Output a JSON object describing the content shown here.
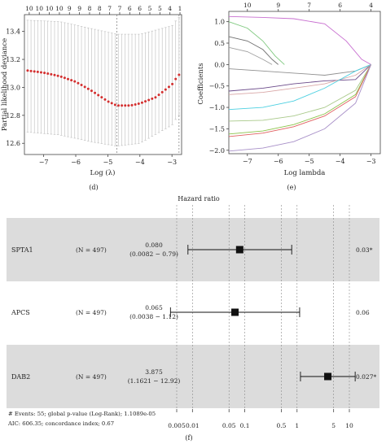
{
  "chart_data": [
    {
      "panel": "(d)",
      "type": "scatter",
      "xlabel": "Log (λ)",
      "ylabel": "Partial likelihood deviance",
      "xlim": [
        -7.6,
        -2.7
      ],
      "ylim": [
        12.52,
        13.52
      ],
      "x_ticks": [
        -7,
        -6,
        -5,
        -4,
        -3
      ],
      "x_tick_labels": [
        "−7",
        "−6",
        "−5",
        "−4",
        "−3"
      ],
      "y_ticks": [
        12.6,
        12.8,
        13.0,
        13.2,
        13.4
      ],
      "y_tick_labels": [
        "12.6",
        "12.8",
        "13.0",
        "13.2",
        "13.4"
      ],
      "top_tick_labels": [
        "10",
        "10",
        "10",
        "10",
        "9",
        "9",
        "8",
        "8",
        "7",
        "7",
        "6",
        "6",
        "5",
        "5",
        "4",
        "1"
      ],
      "vlines": [
        -4.72,
        -2.78
      ],
      "curve_points": [
        [
          -7.5,
          13.12
        ],
        [
          -7.0,
          13.105
        ],
        [
          -6.5,
          13.08
        ],
        [
          -6.0,
          13.04
        ],
        [
          -5.5,
          12.975
        ],
        [
          -5.0,
          12.9
        ],
        [
          -4.72,
          12.87
        ],
        [
          -4.3,
          12.87
        ],
        [
          -4.0,
          12.885
        ],
        [
          -3.5,
          12.93
        ],
        [
          -3.0,
          13.02
        ],
        [
          -2.8,
          13.09
        ]
      ],
      "error_lower": [
        [
          -7.5,
          12.68
        ],
        [
          -6.5,
          12.66
        ],
        [
          -5.5,
          12.61
        ],
        [
          -4.72,
          12.58
        ],
        [
          -4.0,
          12.6
        ],
        [
          -3.0,
          12.73
        ],
        [
          -2.8,
          12.8
        ]
      ],
      "error_upper": [
        [
          -7.5,
          13.48
        ],
        [
          -6.5,
          13.47
        ],
        [
          -5.5,
          13.42
        ],
        [
          -4.72,
          13.38
        ],
        [
          -4.0,
          13.38
        ],
        [
          -3.0,
          13.44
        ],
        [
          -2.8,
          13.5
        ]
      ]
    },
    {
      "panel": "(e)",
      "type": "line",
      "xlabel": "Log lambda",
      "ylabel": "Coefficients",
      "xlim": [
        -7.6,
        -2.7
      ],
      "ylim": [
        -2.08,
        1.24
      ],
      "x_ticks": [
        -7,
        -6,
        -5,
        -4,
        -3
      ],
      "x_tick_labels": [
        "−7",
        "−6",
        "−5",
        "−4",
        "−3"
      ],
      "y_ticks": [
        -2.0,
        -1.5,
        -1.0,
        -0.5,
        0.0,
        0.5,
        1.0
      ],
      "y_tick_labels": [
        "−2.0",
        "−1.5",
        "−1.0",
        "−0.5",
        "0.0",
        "0.5",
        "1.0"
      ],
      "top_ticks": [
        -7,
        -6,
        -5,
        -4,
        -3
      ],
      "top_tick_labels": [
        "10",
        "9",
        "7",
        "6",
        "4"
      ],
      "series": [
        {
          "color": "#c86fd0",
          "x": [
            -7.6,
            -6.5,
            -5.5,
            -4.5,
            -3.8,
            -3.3,
            -3.0
          ],
          "y": [
            1.12,
            1.1,
            1.07,
            0.95,
            0.55,
            0.12,
            0.0
          ]
        },
        {
          "color": "#7fc97f",
          "x": [
            -7.6,
            -7.0,
            -6.5,
            -6.1,
            -5.8
          ],
          "y": [
            1.0,
            0.85,
            0.55,
            0.2,
            0.0
          ]
        },
        {
          "color": "#707070",
          "x": [
            -7.6,
            -7.0,
            -6.5,
            -6.2,
            -6.0
          ],
          "y": [
            0.65,
            0.55,
            0.35,
            0.12,
            0.0
          ]
        },
        {
          "color": "#a0a0a0",
          "x": [
            -7.6,
            -7.0,
            -6.5,
            -6.2
          ],
          "y": [
            0.4,
            0.3,
            0.12,
            0.0
          ]
        },
        {
          "color": "#909090",
          "x": [
            -7.6,
            -6.5,
            -5.5,
            -4.5,
            -3.5,
            -3.0
          ],
          "y": [
            -0.1,
            -0.15,
            -0.2,
            -0.25,
            -0.15,
            0.0
          ]
        },
        {
          "color": "#6b4a8a",
          "x": [
            -7.6,
            -6.5,
            -5.5,
            -4.5,
            -3.5,
            -3.0
          ],
          "y": [
            -0.62,
            -0.55,
            -0.45,
            -0.38,
            -0.35,
            0.0
          ]
        },
        {
          "color": "#d9a7a7",
          "x": [
            -7.6,
            -6.5,
            -5.5,
            -4.5,
            -3.5,
            -3.0
          ],
          "y": [
            -0.7,
            -0.65,
            -0.55,
            -0.45,
            -0.25,
            0.0
          ]
        },
        {
          "color": "#4dd0e1",
          "x": [
            -7.6,
            -6.5,
            -5.5,
            -4.5,
            -3.5,
            -3.0
          ],
          "y": [
            -1.05,
            -1.0,
            -0.85,
            -0.55,
            -0.15,
            0.0
          ]
        },
        {
          "color": "#a9c98a",
          "x": [
            -7.6,
            -6.5,
            -5.5,
            -4.5,
            -3.5,
            -3.0
          ],
          "y": [
            -1.32,
            -1.3,
            -1.2,
            -1.0,
            -0.6,
            0.0
          ]
        },
        {
          "color": "#8bc34a",
          "x": [
            -7.6,
            -6.5,
            -5.5,
            -4.5,
            -3.5,
            -3.0
          ],
          "y": [
            -1.62,
            -1.55,
            -1.4,
            -1.15,
            -0.7,
            0.0
          ]
        },
        {
          "color": "#e06060",
          "x": [
            -7.6,
            -6.5,
            -5.5,
            -4.5,
            -3.5,
            -3.0
          ],
          "y": [
            -1.68,
            -1.6,
            -1.45,
            -1.2,
            -0.75,
            0.0
          ]
        },
        {
          "color": "#a890c8",
          "x": [
            -7.6,
            -6.5,
            -5.5,
            -4.5,
            -3.5,
            -3.0
          ],
          "y": [
            -2.02,
            -1.95,
            -1.8,
            -1.5,
            -0.9,
            0.0
          ]
        }
      ]
    },
    {
      "panel": "(f)",
      "type": "forest",
      "title": "Hazard ratio",
      "x_scale": "log",
      "x_ticks": [
        0.005,
        0.01,
        0.05,
        0.1,
        0.5,
        1,
        5,
        10
      ],
      "x_tick_labels": [
        "0.005",
        "0.01",
        "0.05",
        "0.1",
        "0.5",
        "1",
        "5",
        "10"
      ],
      "rows": [
        {
          "name": "SPTA1",
          "n": "(N = 497)",
          "hr": 0.08,
          "lo": 0.0082,
          "hi": 0.79,
          "hr_text": "0.080",
          "ci_text": "(0.0082 − 0.79)",
          "p": "0.03*",
          "shaded": true
        },
        {
          "name": "APCS",
          "n": "(N = 497)",
          "hr": 0.065,
          "lo": 0.0038,
          "hi": 1.12,
          "hr_text": "0.065",
          "ci_text": "(0.0038 − 1.12)",
          "p": "0.06",
          "shaded": false
        },
        {
          "name": "DAB2",
          "n": "(N = 497)",
          "hr": 3.875,
          "lo": 1.1621,
          "hi": 12.92,
          "hr_text": "3.875",
          "ci_text": "(1.1621 − 12.92)",
          "p": "0.027*",
          "shaded": true
        }
      ],
      "footer_line1": "# Events: 55; global p-value (Log-Rank); 1.1089e-05",
      "footer_line2": "AIC: 606.35; concordance index; 0.67"
    }
  ]
}
